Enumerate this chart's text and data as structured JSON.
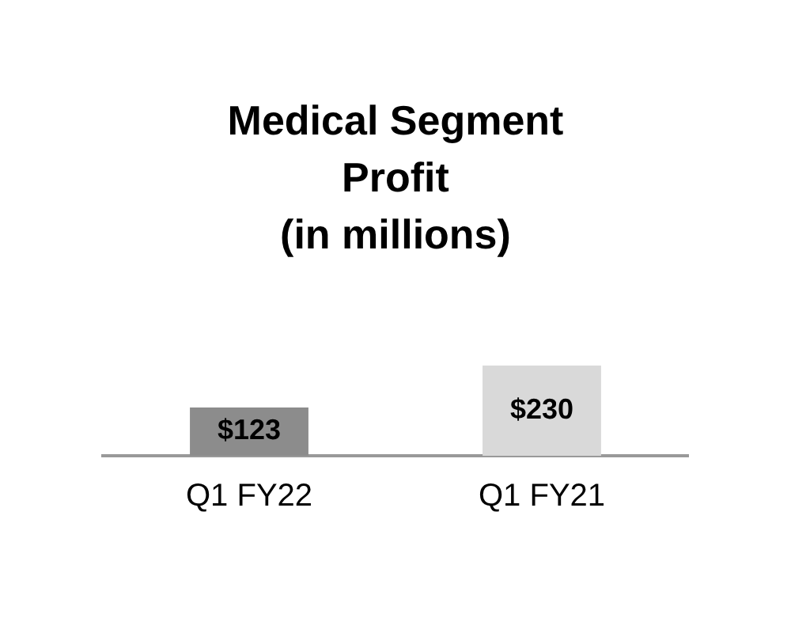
{
  "chart_data": {
    "type": "bar",
    "title": "Medical Segment\nProfit\n(in millions)",
    "categories": [
      "Q1 FY22",
      "Q1 FY21"
    ],
    "values": [
      123,
      230
    ],
    "colors": [
      "#8c8c8c",
      "#d9d9d9"
    ],
    "value_labels": [
      "$123",
      "$230"
    ]
  }
}
